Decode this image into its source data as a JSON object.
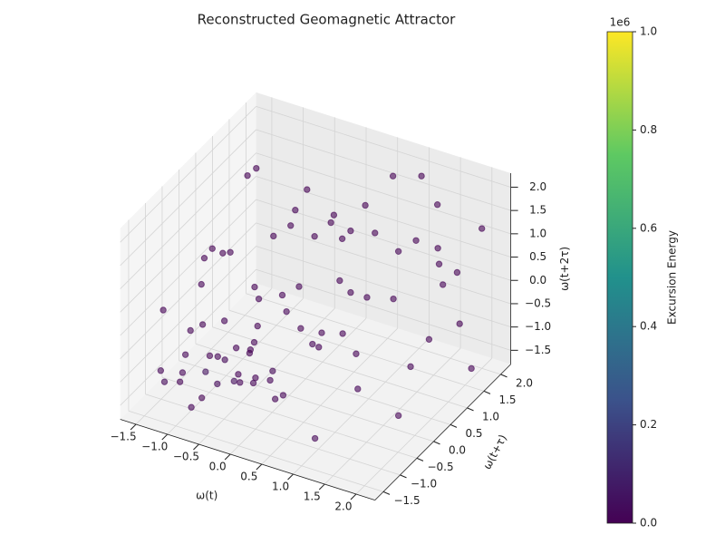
{
  "chart_data": {
    "type": "scatter3d",
    "title": "Reconstructed Geomagnetic Attractor",
    "xlabel": "ω(t)",
    "ylabel": "ω(t+τ)",
    "zlabel": "ω(t+2τ)",
    "xlim": [
      -1.75,
      2.3
    ],
    "ylim": [
      -1.75,
      2.3
    ],
    "zlim": [
      -1.8,
      2.3
    ],
    "xticks": [
      {
        "value": -1.5,
        "label": "−1.5"
      },
      {
        "value": -1.0,
        "label": "−1.0"
      },
      {
        "value": -0.5,
        "label": "−0.5"
      },
      {
        "value": 0,
        "label": "0.0"
      },
      {
        "value": 0.5,
        "label": "0.5"
      },
      {
        "value": 1,
        "label": "1.0"
      },
      {
        "value": 1.5,
        "label": "1.5"
      },
      {
        "value": 2,
        "label": "2.0"
      }
    ],
    "yticks": [
      {
        "value": -1.5,
        "label": "−1.5"
      },
      {
        "value": -1.0,
        "label": "−1.0"
      },
      {
        "value": -0.5,
        "label": "−0.5"
      },
      {
        "value": 0,
        "label": "0.0"
      },
      {
        "value": 0.5,
        "label": "0.5"
      },
      {
        "value": 1,
        "label": "1.0"
      },
      {
        "value": 1.5,
        "label": "1.5"
      },
      {
        "value": 2,
        "label": "2.0"
      }
    ],
    "zticks": [
      {
        "value": -1.5,
        "label": "−1.5"
      },
      {
        "value": -1.0,
        "label": "−1.0"
      },
      {
        "value": -0.5,
        "label": "−0.5"
      },
      {
        "value": 0,
        "label": "0.0"
      },
      {
        "value": 0.5,
        "label": "0.5"
      },
      {
        "value": 1,
        "label": "1.0"
      },
      {
        "value": 1.5,
        "label": "1.5"
      },
      {
        "value": 2,
        "label": "2.0"
      }
    ],
    "x": [
      -1.4,
      -1.2,
      -1.0,
      -0.9,
      -0.8,
      -0.7,
      -0.6,
      -0.5,
      -0.4,
      -0.3,
      -1.3,
      -1.1,
      -0.9,
      -0.7,
      -0.5,
      -0.3,
      -0.2,
      -0.1,
      0.0,
      0.1,
      -1.5,
      -1.2,
      -1.0,
      -0.8,
      -0.6,
      -0.4,
      -0.2,
      0.0,
      0.2,
      0.4,
      -1.3,
      -1.0,
      -0.7,
      -0.3,
      0.1,
      0.5,
      0.8,
      1.1,
      1.4,
      1.7,
      2.0,
      1.8,
      1.5,
      1.2,
      0.9,
      0.6,
      0.3,
      1.0,
      1.3,
      1.6,
      1.9,
      2.1,
      1.7,
      1.4,
      1.1,
      0.8,
      0.5,
      0.2,
      -0.1,
      -0.4,
      -0.8,
      -1.1,
      -1.4,
      -1.2,
      -0.9,
      -0.6,
      -0.3,
      0.0,
      0.3,
      0.6,
      0.9,
      1.2,
      1.5,
      1.8,
      2.1,
      -1.5,
      -1.0,
      -0.7,
      -0.5,
      -0.2
    ],
    "y": [
      -1.2,
      -1.0,
      -1.3,
      -0.8,
      -1.1,
      -0.6,
      -1.0,
      -0.7,
      -0.4,
      -0.9,
      -0.5,
      -0.3,
      -1.4,
      -0.2,
      -1.2,
      -0.5,
      -0.8,
      -0.3,
      -1.0,
      -0.6,
      0.2,
      0.5,
      -0.1,
      0.6,
      0.1,
      0.8,
      0.3,
      -0.2,
      0.6,
      -0.4,
      1.2,
      0.9,
      1.5,
      1.1,
      1.4,
      0.9,
      1.6,
      1.2,
      1.8,
      1.4,
      2.0,
      0.8,
      0.3,
      -0.2,
      -0.8,
      -1.3,
      -1.5,
      -1.1,
      -0.6,
      -1.0,
      -0.3,
      0.5,
      1.9,
      1.0,
      0.5,
      0.1,
      0.4,
      1.9,
      1.7,
      2.0,
      1.8,
      1.6,
      0.7,
      -1.5,
      -0.6,
      -1.4,
      0.0,
      0.7,
      0.2,
      1.2,
      2.1,
      1.7,
      2.2,
      1.1,
      1.5,
      -0.9,
      -0.7,
      -1.6,
      -0.1,
      -1.2
    ],
    "z": [
      -1.0,
      -1.3,
      -0.8,
      -1.1,
      -1.4,
      -0.9,
      -0.5,
      -1.2,
      -0.7,
      -1.0,
      -0.6,
      -1.2,
      -0.3,
      -1.5,
      -0.9,
      -1.3,
      -0.4,
      -1.1,
      -0.7,
      -1.4,
      -0.2,
      0.4,
      0.9,
      -0.5,
      0.2,
      1.1,
      -0.3,
      0.5,
      -0.8,
      0.1,
      1.5,
      2.0,
      0.8,
      1.7,
      0.6,
      1.3,
      2.1,
      0.9,
      1.6,
      0.3,
      1.2,
      -0.4,
      0.7,
      -1.0,
      0.2,
      -0.6,
      0.9,
      -1.5,
      1.4,
      0.5,
      -1.2,
      1.9,
      -0.9,
      -1.3,
      1.8,
      -0.2,
      2.0,
      1.0,
      -0.6,
      0.3,
      -1.1,
      0.0,
      -1.3,
      0.6,
      1.4,
      1.9,
      -1.6,
      -1.2,
      1.6,
      -0.3,
      0.4,
      2.2,
      -0.1,
      1.0,
      -1.4,
      -1.5,
      -0.2,
      -1.2,
      -0.8,
      0.0
    ],
    "c": [
      12000,
      3000,
      8000,
      45000,
      2000,
      15000,
      6000,
      30000,
      4000,
      9000,
      5000,
      2000,
      11000,
      3000,
      20000,
      7000,
      1000,
      14000,
      2500,
      6000,
      3000,
      5000,
      1500,
      8000,
      2000,
      4000,
      10000,
      3000,
      6000,
      2000,
      1000,
      2000,
      4000,
      1500,
      3000,
      2500,
      1000,
      5000,
      2000,
      3000,
      1500,
      6000,
      2500,
      9000,
      3500,
      7000,
      2000,
      12000,
      3000,
      4000,
      5000,
      1000,
      2000,
      6000,
      1500,
      3500,
      1000,
      2000,
      4000,
      1500,
      5000,
      2500,
      8000,
      3000,
      2000,
      1000,
      10000,
      7000,
      1500,
      3000,
      1000,
      1000,
      2000,
      2500,
      4000,
      18000,
      6000,
      9000,
      5000,
      4000
    ],
    "clim": [
      0,
      1000000
    ],
    "cmap": "viridis",
    "colorbar_label": "Excursion Energy",
    "colorbar_offset": "1e6",
    "cticks": [
      {
        "value": 0,
        "label": "0.0"
      },
      {
        "value": 200000,
        "label": "0.2"
      },
      {
        "value": 400000,
        "label": "0.4"
      },
      {
        "value": 600000,
        "label": "0.6"
      },
      {
        "value": 800000,
        "label": "0.8"
      },
      {
        "value": 1000000,
        "label": "1.0"
      }
    ],
    "grid": true
  }
}
